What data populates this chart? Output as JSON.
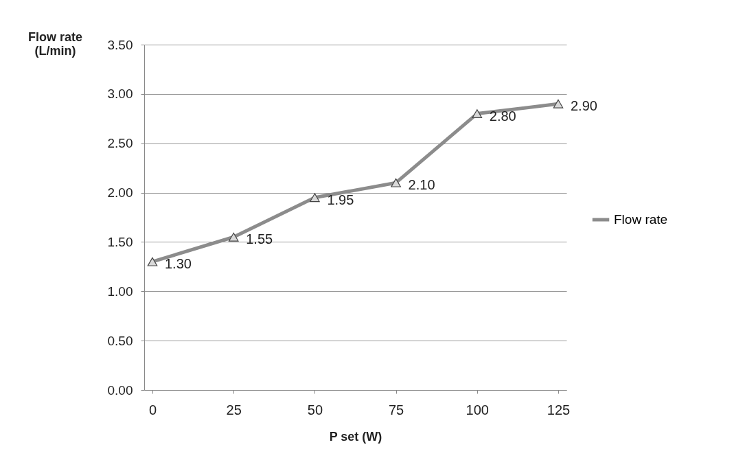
{
  "chart_data": {
    "type": "line",
    "xlabel": "P set (W)",
    "ylabel": "Flow rate\n(L/min)",
    "categories": [
      "0",
      "25",
      "50",
      "75",
      "100",
      "125"
    ],
    "series": [
      {
        "name": "Flow rate",
        "color": "#8c8c8c",
        "values": [
          1.3,
          1.55,
          1.95,
          2.1,
          2.8,
          2.9
        ],
        "value_labels": [
          "1.30",
          "1.55",
          "1.95",
          "2.10",
          "2.80",
          "2.90"
        ]
      }
    ],
    "ylim": [
      0,
      3.5
    ],
    "yticks": [
      {
        "value": 0,
        "label": "0.00"
      },
      {
        "value": 0.5,
        "label": "0.50"
      },
      {
        "value": 1,
        "label": "1.00"
      },
      {
        "value": 1.5,
        "label": "1.50"
      },
      {
        "value": 2,
        "label": "2.00"
      },
      {
        "value": 2.5,
        "label": "2.50"
      },
      {
        "value": 3,
        "label": "3.00"
      },
      {
        "value": 3.5,
        "label": "3.50"
      }
    ],
    "grid": "y",
    "legend": "right",
    "marker": "triangle",
    "line_style": "solid"
  }
}
